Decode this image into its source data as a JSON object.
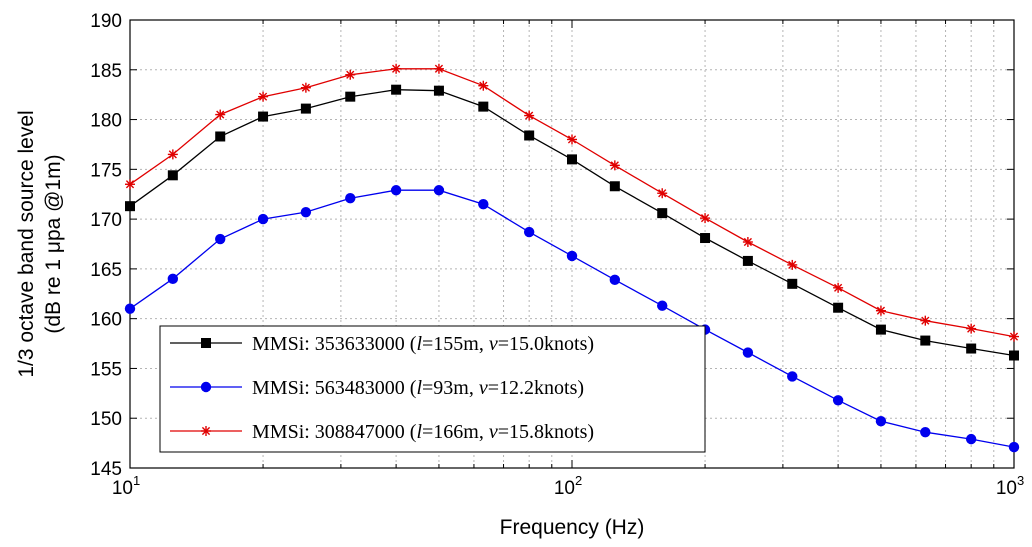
{
  "chart_data": {
    "type": "line",
    "xlabel": "Frequency (Hz)",
    "ylabel": "1/3 octave band source level",
    "ylabel_line2": "(dB re 1 μpa @1m)",
    "x_scale": "log",
    "xlim": [
      10,
      1000
    ],
    "ylim": [
      145,
      190
    ],
    "yticks": [
      145,
      150,
      155,
      160,
      165,
      170,
      175,
      180,
      185,
      190
    ],
    "xticks": [
      {
        "value": 10,
        "base": "10",
        "exp": "1"
      },
      {
        "value": 100,
        "base": "10",
        "exp": "2"
      },
      {
        "value": 1000,
        "base": "10",
        "exp": "3"
      }
    ],
    "grid": true,
    "legend_position": "lower-left",
    "x": [
      10,
      12.5,
      16,
      20,
      25,
      31.5,
      40,
      50,
      63,
      80,
      100,
      125,
      160,
      200,
      250,
      315,
      400,
      500,
      630,
      800,
      1000
    ],
    "series": [
      {
        "name": "MMSi: 353633000 (l=155m, v=15.0knots)",
        "legend": {
          "prefix": "MMSi: 353633000 (",
          "l": "l",
          "l_val": "=155m, ",
          "v": "v",
          "v_val": "=15.0knots)"
        },
        "color": "#000000",
        "marker": "square",
        "values": [
          171.3,
          174.4,
          178.3,
          180.3,
          181.1,
          182.3,
          183.0,
          182.9,
          181.3,
          178.4,
          176.0,
          173.3,
          170.6,
          168.1,
          165.8,
          163.5,
          161.1,
          158.9,
          157.8,
          157.0,
          156.3
        ]
      },
      {
        "name": "MMSi: 563483000 (l=93m, v=12.2knots)",
        "legend": {
          "prefix": "MMSi: 563483000 (",
          "l": "l",
          "l_val": "=93m, ",
          "v": "v",
          "v_val": "=12.2knots)"
        },
        "color": "#0000ee",
        "marker": "circle",
        "values": [
          161.0,
          164.0,
          168.0,
          170.0,
          170.7,
          172.1,
          172.9,
          172.9,
          171.5,
          168.7,
          166.3,
          163.9,
          161.3,
          158.9,
          156.6,
          154.2,
          151.8,
          149.7,
          148.6,
          147.9,
          147.1
        ]
      },
      {
        "name": "MMSi: 308847000 (l=166m, v=15.8knots)",
        "legend": {
          "prefix": "MMSi: 308847000 (",
          "l": "l",
          "l_val": "=166m, ",
          "v": "v",
          "v_val": "=15.8knots)"
        },
        "color": "#e00000",
        "marker": "asterisk",
        "values": [
          173.5,
          176.5,
          180.5,
          182.3,
          183.2,
          184.5,
          185.1,
          185.1,
          183.4,
          180.4,
          178.0,
          175.4,
          172.6,
          170.1,
          167.7,
          165.4,
          163.1,
          160.8,
          159.8,
          159.0,
          158.2
        ]
      }
    ]
  }
}
